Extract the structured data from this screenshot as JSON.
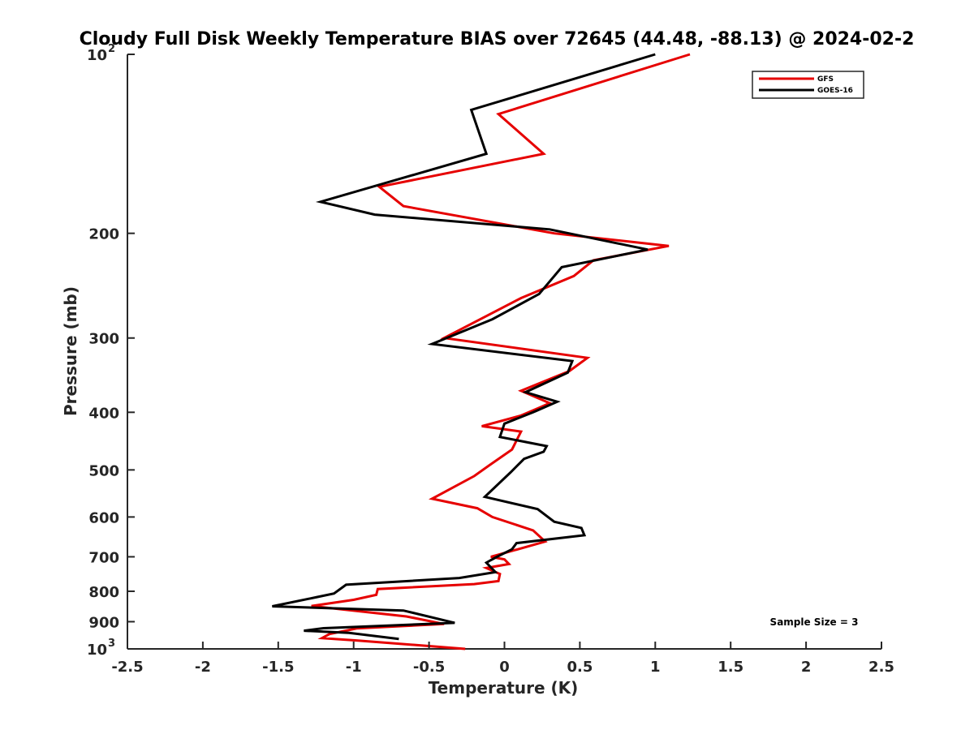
{
  "chart_data": {
    "type": "line",
    "title": "Cloudy Full Disk Weekly Temperature BIAS over 72645 (44.48, -88.13) @ 2024-02-2",
    "xlabel": "Temperature (K)",
    "ylabel": "Pressure (mb)",
    "xlim": [
      -2.5,
      2.5
    ],
    "ylim": [
      100,
      1000
    ],
    "y_scale": "log",
    "y_reversed": true,
    "x_ticks": [
      "-2.5",
      "-2",
      "-1.5",
      "-1",
      "-0.5",
      "0",
      "0.5",
      "1",
      "1.5",
      "2",
      "2.5"
    ],
    "x_tick_values": [
      -2.5,
      -2,
      -1.5,
      -1,
      -0.5,
      0,
      0.5,
      1,
      1.5,
      2,
      2.5
    ],
    "y_ticks_plain": [
      "200",
      "300",
      "400",
      "500",
      "600",
      "700",
      "800",
      "900"
    ],
    "y_tick_values": [
      200,
      300,
      400,
      500,
      600,
      700,
      800,
      900
    ],
    "y_tick_top": {
      "base": "10",
      "exp": "2",
      "value": 100
    },
    "y_tick_bottom": {
      "base": "10",
      "exp": "3",
      "value": 1000
    },
    "grid": false,
    "legend_position": "top-right",
    "annotation": "Sample Size = 3",
    "series": [
      {
        "name": "GFS",
        "color": "#e60000",
        "x": [
          1.23,
          -0.04,
          0.26,
          -0.83,
          -0.67,
          0.33,
          1.09,
          0.59,
          0.46,
          0.11,
          -0.4,
          0.55,
          0.43,
          0.11,
          0.3,
          0.23,
          0.11,
          -0.15,
          0.11,
          0.05,
          -0.1,
          -0.2,
          -0.48,
          -0.18,
          -0.08,
          0.19,
          0.27,
          -0.09,
          0.0,
          0.03,
          -0.12,
          -0.03,
          -0.04,
          -0.2,
          -0.84,
          -0.85,
          -1.0,
          -1.28,
          -0.65,
          -0.4,
          -0.98,
          -1.16,
          -1.21,
          -0.98,
          -0.26
        ],
        "y": [
          100,
          126,
          147,
          167,
          180,
          200,
          210,
          222,
          236,
          257,
          300,
          324,
          341,
          368,
          386,
          393,
          405,
          422,
          431,
          462,
          491,
          512,
          559,
          580,
          600,
          632,
          660,
          700,
          707,
          720,
          731,
          748,
          769,
          778,
          793,
          811,
          827,
          847,
          882,
          908,
          924,
          944,
          959,
          968,
          1000
        ]
      },
      {
        "name": "GOES-16",
        "color": "#000000",
        "x": [
          1.0,
          -0.22,
          -0.12,
          -1.22,
          -0.86,
          0.3,
          0.95,
          0.38,
          0.23,
          -0.08,
          -0.48,
          0.45,
          0.42,
          0.14,
          0.35,
          0.19,
          0.0,
          -0.03,
          0.28,
          0.26,
          0.13,
          0.04,
          -0.13,
          0.22,
          0.33,
          0.51,
          0.53,
          0.08,
          0.05,
          -0.05,
          -0.09,
          -0.12,
          -0.06,
          -0.3,
          -1.05,
          -1.13,
          -1.25,
          -1.54,
          -0.67,
          -0.33,
          -1.2,
          -1.33,
          -1.03,
          -0.7
        ],
        "y": [
          100,
          124,
          147,
          177,
          186,
          197,
          213,
          228,
          253,
          279,
          307,
          328,
          343,
          370,
          384,
          400,
          418,
          440,
          456,
          466,
          479,
          505,
          555,
          582,
          611,
          626,
          644,
          664,
          680,
          700,
          709,
          716,
          743,
          760,
          780,
          807,
          819,
          848,
          862,
          904,
          923,
          932,
          940,
          962
        ]
      }
    ]
  }
}
